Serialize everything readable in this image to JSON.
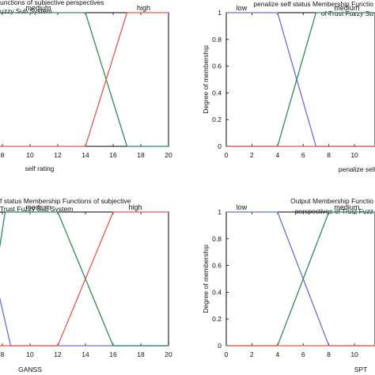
{
  "chart_data": [
    {
      "type": "line",
      "title_lines": [
        "unctions of subjective perspectives",
        "uzzy Sub System"
      ],
      "xlabel": "self rating",
      "ylabel": "",
      "xlim": [
        7.6,
        20
      ],
      "ylim": [
        0,
        1
      ],
      "x_ticks": [
        8,
        10,
        12,
        14,
        16,
        18,
        20
      ],
      "y_ticks": [],
      "series": [
        {
          "name": "medium",
          "color": "#2e8b57",
          "points": [
            [
              7.6,
              1
            ],
            [
              14,
              1
            ],
            [
              17,
              0
            ],
            [
              20,
              0
            ]
          ]
        },
        {
          "name": "high",
          "color": "#e8574b",
          "points": [
            [
              7.6,
              0
            ],
            [
              14,
              0
            ],
            [
              17,
              1
            ],
            [
              20,
              1
            ]
          ]
        }
      ],
      "labels": [
        {
          "text": "medium",
          "x": 10.6
        },
        {
          "text": "high",
          "x": 18.2
        }
      ]
    },
    {
      "type": "line",
      "title_lines": [
        "penalize self status Membership Functio",
        "of Trust Fuzzy Su"
      ],
      "xlabel": "penalize self st",
      "ylabel": "Degree of membership",
      "xlim": [
        0,
        11.6
      ],
      "ylim": [
        0,
        1
      ],
      "x_ticks": [
        0,
        2,
        4,
        6,
        8,
        10
      ],
      "y_ticks": [
        0,
        0.2,
        0.4,
        0.6,
        0.8,
        1
      ],
      "series": [
        {
          "name": "low",
          "color": "#6a6fd8",
          "points": [
            [
              0,
              1
            ],
            [
              4,
              1
            ],
            [
              7,
              0
            ],
            [
              11.6,
              0
            ]
          ]
        },
        {
          "name": "medium",
          "color": "#2e8b57",
          "points": [
            [
              0,
              0
            ],
            [
              4,
              0
            ],
            [
              7,
              1
            ],
            [
              11.6,
              1
            ]
          ]
        },
        {
          "name": "",
          "color": "#e8574b",
          "points": [
            [
              0,
              0
            ],
            [
              11.6,
              0
            ]
          ]
        }
      ],
      "labels": [
        {
          "text": "low",
          "x": 1.2
        },
        {
          "text": "medium",
          "x": 9.4
        }
      ]
    },
    {
      "type": "line",
      "title_lines": [
        "f status Membership Functions of subjective",
        "Trust Fuzzy  Sub System"
      ],
      "xlabel": "GANSS",
      "ylabel": "",
      "xlim": [
        7.6,
        20
      ],
      "ylim": [
        0,
        1
      ],
      "x_ticks": [
        8,
        10,
        12,
        14,
        16,
        18,
        20
      ],
      "y_ticks": [],
      "series": [
        {
          "name": "low",
          "color": "#6a6fd8",
          "points": [
            [
              7.6,
              0.45
            ],
            [
              8.6,
              0
            ],
            [
              20,
              0
            ]
          ]
        },
        {
          "name": "medium",
          "color": "#2e8b57",
          "points": [
            [
              7.6,
              0.6
            ],
            [
              8.2,
              1
            ],
            [
              12,
              1
            ],
            [
              16,
              0
            ],
            [
              20,
              0
            ]
          ]
        },
        {
          "name": "high",
          "color": "#e8574b",
          "points": [
            [
              7.6,
              0
            ],
            [
              12,
              0
            ],
            [
              16,
              1
            ],
            [
              20,
              1
            ]
          ]
        }
      ],
      "labels": [
        {
          "text": "medium",
          "x": 10.6
        },
        {
          "text": "high",
          "x": 17.6
        }
      ]
    },
    {
      "type": "line",
      "title_lines": [
        "Output Membership Functio",
        "perspectives of Trust Fuzz"
      ],
      "xlabel": "SPT",
      "ylabel": "Degree of membership",
      "xlim": [
        0,
        11.6
      ],
      "ylim": [
        0,
        1
      ],
      "x_ticks": [
        0,
        2,
        4,
        6,
        8,
        10
      ],
      "y_ticks": [
        0,
        0.2,
        0.4,
        0.6,
        0.8,
        1
      ],
      "series": [
        {
          "name": "low",
          "color": "#6a6fd8",
          "points": [
            [
              0,
              1
            ],
            [
              4,
              1
            ],
            [
              8,
              0
            ],
            [
              11.6,
              0
            ]
          ]
        },
        {
          "name": "medium",
          "color": "#2e8b57",
          "points": [
            [
              0,
              0
            ],
            [
              4,
              0
            ],
            [
              8,
              1
            ],
            [
              11.6,
              1
            ]
          ]
        },
        {
          "name": "",
          "color": "#e8574b",
          "points": [
            [
              0,
              0
            ],
            [
              11.6,
              0
            ]
          ]
        }
      ],
      "labels": [
        {
          "text": "low",
          "x": 1.2
        },
        {
          "text": "medium",
          "x": 9.4
        }
      ]
    }
  ]
}
